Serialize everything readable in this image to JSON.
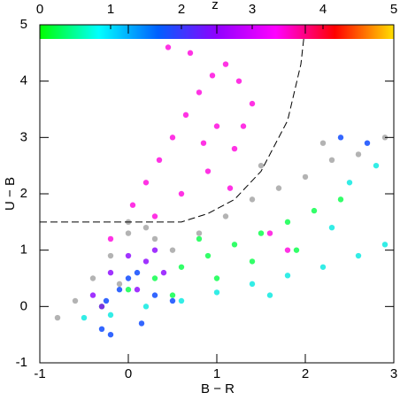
{
  "chart_data": {
    "type": "scatter",
    "x_label": "B − R",
    "y_label": "U − B",
    "xlim": [
      -1,
      3
    ],
    "ylim": [
      -1,
      5
    ],
    "xticks": [
      -1,
      0,
      1,
      2,
      3
    ],
    "yticks": [
      -1,
      0,
      1,
      2,
      3,
      4,
      5
    ],
    "colorbar": {
      "label": "z",
      "lim": [
        0,
        5
      ],
      "ticks": [
        0,
        1,
        2,
        3,
        4,
        5
      ],
      "colors": [
        "#00ff00",
        "#00ffff",
        "#0060ff",
        "#9000ff",
        "#ff00ff",
        "#ff0000",
        "#ffe000"
      ]
    },
    "lines": [
      {
        "color": "#000000",
        "dashed": true,
        "x": [
          -1,
          0,
          0.6,
          0.9,
          1.2,
          1.5,
          1.8,
          1.95,
          2.0
        ],
        "y": [
          1.5,
          1.5,
          1.5,
          1.65,
          1.9,
          2.4,
          3.3,
          4.3,
          5.0
        ]
      }
    ],
    "series": [
      {
        "color": "#ff00dd",
        "x": [
          0.05,
          0.2,
          0.35,
          0.5,
          0.65,
          0.8,
          0.95,
          1.1,
          1.25,
          1.4,
          0.3,
          0.6,
          0.9,
          1.2,
          0.7,
          1.0,
          1.3,
          0.45,
          0.85,
          1.15,
          -0.2,
          1.6,
          1.8
        ],
        "y": [
          1.8,
          2.2,
          2.6,
          3.0,
          3.4,
          3.8,
          4.1,
          4.3,
          4.0,
          3.6,
          1.6,
          2.0,
          2.4,
          2.8,
          4.5,
          3.2,
          3.2,
          4.6,
          2.9,
          2.1,
          1.2,
          1.3,
          1.0
        ]
      },
      {
        "color": "#00ff44",
        "x": [
          -0.3,
          0.0,
          0.3,
          0.6,
          0.9,
          1.2,
          1.5,
          1.8,
          2.1,
          0.5,
          1.0,
          1.4,
          1.9,
          2.4,
          0.8
        ],
        "y": [
          0.0,
          0.3,
          0.5,
          0.7,
          0.9,
          1.1,
          1.3,
          1.5,
          1.7,
          0.2,
          0.5,
          0.8,
          1.0,
          1.9,
          1.2
        ]
      },
      {
        "color": "#00e8e0",
        "x": [
          -0.5,
          -0.2,
          0.2,
          0.6,
          1.0,
          1.4,
          1.8,
          2.2,
          2.6,
          2.9,
          2.5,
          2.8,
          1.6,
          2.3
        ],
        "y": [
          -0.2,
          -0.15,
          0.0,
          0.1,
          0.25,
          0.4,
          0.55,
          0.7,
          0.9,
          1.1,
          2.2,
          2.5,
          0.2,
          1.4
        ]
      },
      {
        "color": "#8a00ff",
        "x": [
          -0.4,
          -0.2,
          0.0,
          0.2,
          0.4,
          -0.3,
          0.1,
          0.3
        ],
        "y": [
          0.2,
          0.6,
          0.9,
          0.8,
          0.6,
          0.0,
          0.3,
          1.0
        ]
      },
      {
        "color": "#0040ff",
        "x": [
          -0.3,
          -0.2,
          -0.1,
          0.0,
          0.1,
          0.3,
          0.5,
          -0.25,
          0.15,
          2.4,
          2.7
        ],
        "y": [
          -0.4,
          -0.5,
          0.3,
          0.5,
          0.6,
          0.2,
          0.1,
          0.1,
          -0.3,
          3.0,
          2.9
        ]
      },
      {
        "color": "#a0a0a0",
        "x": [
          -0.8,
          -0.6,
          -0.4,
          -0.2,
          0.0,
          0.2,
          0.5,
          0.8,
          1.1,
          1.4,
          1.7,
          2.0,
          2.3,
          2.6,
          2.9,
          0.0,
          -0.1,
          0.3,
          1.5,
          2.2
        ],
        "y": [
          -0.2,
          0.1,
          0.5,
          0.9,
          1.3,
          1.4,
          1.0,
          1.3,
          1.6,
          1.9,
          2.1,
          2.3,
          2.6,
          2.7,
          3.0,
          1.5,
          0.4,
          1.2,
          2.5,
          2.9
        ]
      }
    ]
  }
}
